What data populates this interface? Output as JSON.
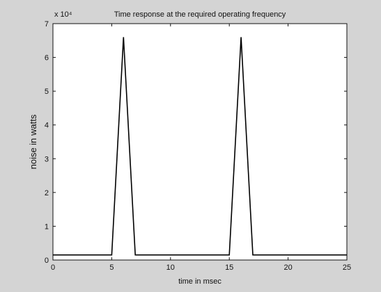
{
  "chart_data": {
    "type": "line",
    "title": "Time response at the required operating frequency",
    "xlabel": "time in msec",
    "ylabel": "noise in watts",
    "y_exponent": "x 10⁴",
    "xlim": [
      0,
      25
    ],
    "ylim": [
      0,
      7
    ],
    "grid": false,
    "xticks": [
      "0",
      "5",
      "10",
      "15",
      "20",
      "25"
    ],
    "yticks": [
      "0",
      "1",
      "2",
      "3",
      "4",
      "5",
      "6",
      "7"
    ],
    "series": [
      {
        "x": [
          0,
          5,
          6,
          7,
          15,
          16,
          17,
          25
        ],
        "y": [
          0.15,
          0.15,
          6.6,
          0.15,
          0.15,
          6.6,
          0.15,
          0.15
        ],
        "color": "#000000"
      }
    ]
  }
}
